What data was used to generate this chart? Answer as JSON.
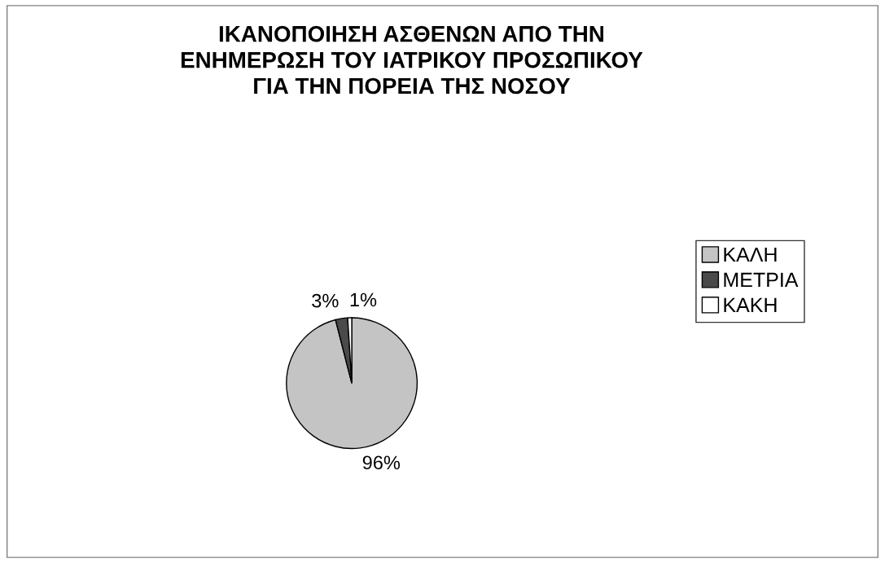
{
  "chart_data": {
    "type": "pie",
    "title": "ΙΚΑΝΟΠΟΙΗΣΗ ΑΣΘΕΝΩΝ ΑΠΟ ΤΗΝ\nΕΝΗΜΕΡΩΣΗ ΤΟΥ ΙΑΤΡΙΚΟΥ ΠΡΟΣΩΠΙΚΟΥ\nΓΙΑ ΤΗΝ ΠΟΡΕΙΑ ΤΗΣ ΝΟΣΟΥ",
    "categories": [
      "ΚΑΛΗ",
      "ΜΕΤΡΙΑ",
      "ΚΑΚΗ"
    ],
    "values": [
      96,
      3,
      1
    ],
    "colors": [
      "#c4c4c4",
      "#4a4a4a",
      "#ffffff"
    ],
    "value_labels": [
      "96%",
      "3%",
      "1%"
    ],
    "legend": "right"
  }
}
